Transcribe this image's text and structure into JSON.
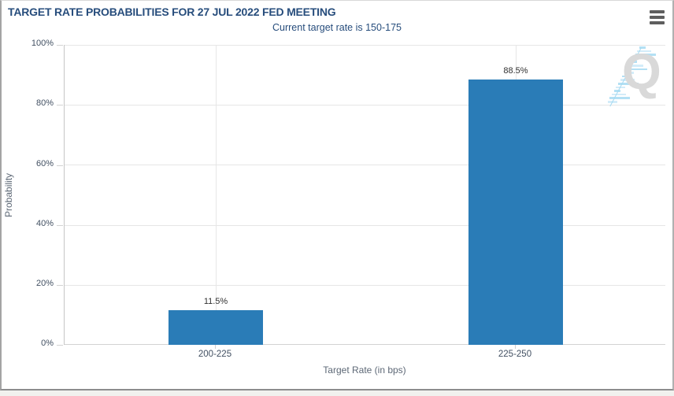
{
  "header": {
    "menu_icon": "hamburger-menu-icon"
  },
  "chart_data": {
    "type": "bar",
    "title": "TARGET RATE PROBABILITIES FOR 27 JUL 2022 FED MEETING",
    "subtitle": "Current target rate is 150-175",
    "categories": [
      "200-225",
      "225-250"
    ],
    "values": [
      11.5,
      88.5
    ],
    "value_labels": [
      "11.5%",
      "88.5%"
    ],
    "xlabel": "Target Rate (in bps)",
    "ylabel": "Probability",
    "ylim": [
      0,
      100
    ],
    "ytick_labels": [
      "0%",
      "20%",
      "40%",
      "60%",
      "80%",
      "100%"
    ],
    "grid": true,
    "legend": "none",
    "bar_color": "#2a7cb7"
  },
  "watermark": {
    "letter": "Q"
  },
  "colors": {
    "title_text": "#274d7c",
    "bar": "#2a7cb7",
    "gridline": "#e6e6e6",
    "axis_line": "#c6c6c6",
    "tick_label": "#425062",
    "value_label": "#303030",
    "axis_title": "#5d6876",
    "watermark_q": "#d9d9d9",
    "watermark_stripe": "#b3e0f4"
  }
}
